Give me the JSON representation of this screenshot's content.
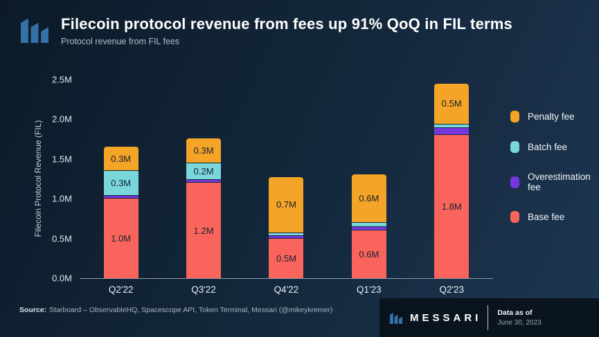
{
  "header": {
    "title": "Filecoin protocol revenue from fees up 91% QoQ in FIL terms",
    "subtitle": "Protocol revenue from FIL fees"
  },
  "chart_data": {
    "type": "bar",
    "stacked": true,
    "title": "Filecoin protocol revenue from fees up 91% QoQ in FIL terms",
    "categories": [
      "Q2'22",
      "Q3'22",
      "Q4'22",
      "Q1'23",
      "Q2'23"
    ],
    "series": [
      {
        "name": "Base fee",
        "color": "#F9655D",
        "values": [
          1.0,
          1.2,
          0.5,
          0.6,
          1.8
        ],
        "labels": [
          "1.0M",
          "1.2M",
          "0.5M",
          "0.6M",
          "1.8M"
        ]
      },
      {
        "name": "Overestimation fee",
        "color": "#7636DE",
        "values": [
          0.03,
          0.03,
          0.02,
          0.04,
          0.08
        ],
        "labels": [
          "",
          "",
          "",
          "",
          ""
        ]
      },
      {
        "name": "Batch fee",
        "color": "#79D7DB",
        "values": [
          0.3,
          0.2,
          0.03,
          0.04,
          0.04
        ],
        "labels": [
          "0.3M",
          "0.2M",
          "",
          "",
          ""
        ]
      },
      {
        "name": "Penalty fee",
        "color": "#F4A426",
        "values": [
          0.3,
          0.3,
          0.7,
          0.6,
          0.5
        ],
        "labels": [
          "0.3M",
          "0.3M",
          "0.7M",
          "0.6M",
          "0.5M"
        ]
      }
    ],
    "legend": [
      "Penalty fee",
      "Batch fee",
      "Overestimation fee",
      "Base fee"
    ],
    "legend_position": "right",
    "grid": false,
    "ylabel": "Filecoin Protocol Revenue (FIL)",
    "xlabel": "",
    "yticks": [
      "0.0M",
      "0.5M",
      "1.0M",
      "1.5M",
      "2.0M",
      "2.5M"
    ],
    "ylim": [
      0,
      2.5
    ]
  },
  "footer": {
    "source_label": "Source:",
    "source_text": "Starboard – ObservableHQ, Spacescope API, Token Terminal, Messari (@mikeykremer)",
    "brand_wordmark": "MESSARI",
    "data_as_of_label": "Data as of",
    "data_as_of_date": "June 30, 2023"
  },
  "colors": {
    "brand_blue": "#3571A8",
    "background": "#13273B",
    "footer_panel": "#0A141E"
  }
}
